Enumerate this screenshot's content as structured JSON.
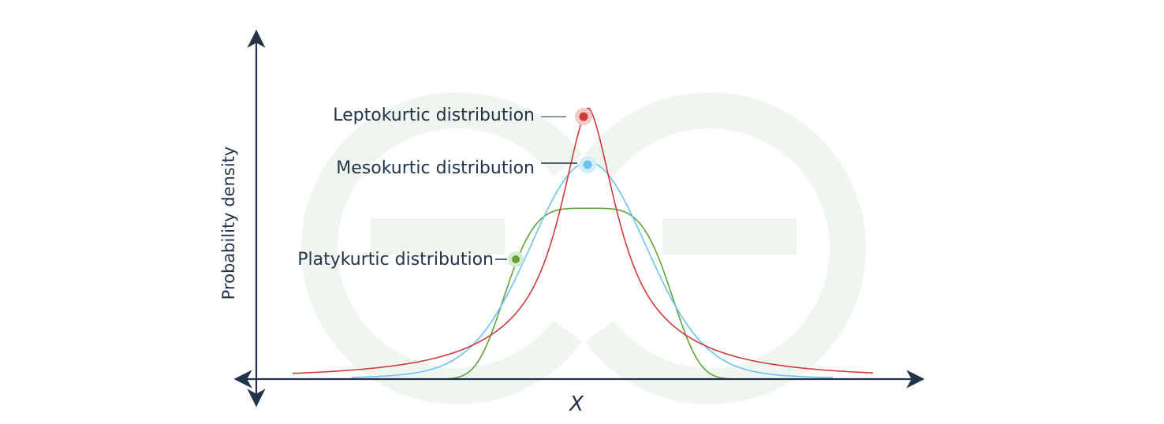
{
  "figure": {
    "y_axis_label": "Probability density",
    "x_axis_label": "X"
  },
  "curves": [
    {
      "key": "leptokurtic",
      "label": "Leptokurtic distribution",
      "shape": "peaked, heavy-tailed",
      "peak_height": 1.0,
      "color": "#d23a3a"
    },
    {
      "key": "mesokurtic",
      "label": "Mesokurtic distribution",
      "shape": "normal",
      "peak_height": 0.8,
      "color": "#6cc3f2"
    },
    {
      "key": "platykurtic",
      "label": "Platykurtic distribution",
      "shape": "flat-topped, light-tailed",
      "peak_height": 0.63,
      "color": "#5fa33a"
    }
  ],
  "colors": {
    "axis": "#23344a",
    "watermark": "#e9f4ea",
    "label_text": "#23344a"
  }
}
